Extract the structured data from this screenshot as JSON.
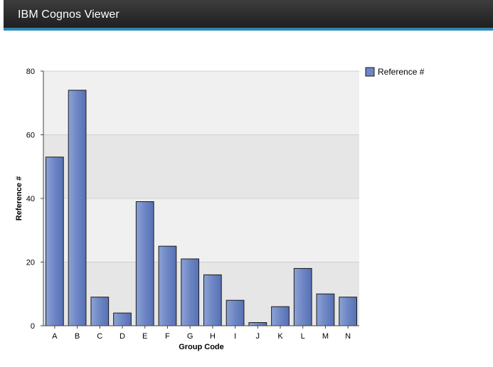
{
  "window": {
    "title": "IBM Cognos Viewer"
  },
  "colors": {
    "bar_fill": "#6d86c4",
    "bar_stroke": "#1a1a1a",
    "band_light": "#f0f0f0",
    "band_dark": "#e6e6e6",
    "titlebar": "#2b2b2b",
    "accent": "#2d87b6"
  },
  "chart_data": {
    "type": "bar",
    "title": "",
    "xlabel": "Group Code",
    "ylabel": "Reference #",
    "ylim": [
      0,
      80
    ],
    "yticks": [
      0,
      20,
      40,
      60,
      80
    ],
    "categories": [
      "A",
      "B",
      "C",
      "D",
      "E",
      "F",
      "G",
      "H",
      "I",
      "J",
      "K",
      "L",
      "M",
      "N"
    ],
    "series": [
      {
        "name": "Reference #",
        "values": [
          53,
          74,
          9,
          4,
          39,
          25,
          21,
          16,
          8,
          1,
          6,
          18,
          10,
          9
        ]
      }
    ],
    "grid": true,
    "legend": "top-right"
  }
}
